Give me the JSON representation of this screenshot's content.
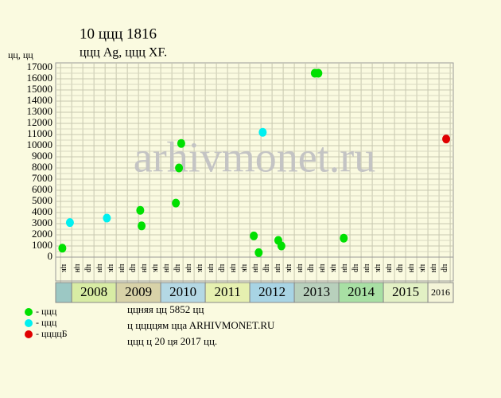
{
  "chart_data": {
    "type": "scatter",
    "title": "10 ццц 1816",
    "subtitle": "ццц Ag, ццц XF.",
    "y_label": "цц, цц",
    "watermark": "arhivmonet.ru",
    "xlim": [
      2007.64,
      2016.57
    ],
    "ylim": [
      0,
      17000
    ],
    "yticks": [
      0,
      1000,
      2000,
      3000,
      4000,
      5000,
      6000,
      7000,
      8000,
      9000,
      10000,
      11000,
      12000,
      13000,
      14000,
      15000,
      16000,
      17000
    ],
    "grid": true,
    "year_bands": [
      null,
      "2008",
      "2009",
      "2010",
      "2011",
      "2012",
      "2013",
      "2014",
      "2015",
      "2016"
    ],
    "band_colors": [
      "#9cc8c4",
      "#d8eca4",
      "#d8d2a8",
      "#b4d8e4",
      "#e6f0b0",
      "#a8d4e4",
      "#b8d0bc",
      "#a8e0a4",
      "#e2f0c4",
      "#f4f4d8"
    ],
    "quarter_labels": [
      "цк",
      "цн",
      "цр",
      "цн",
      "цк",
      "цн",
      "цр",
      "цн",
      "цк",
      "цн",
      "цр",
      "цн",
      "цк",
      "цн",
      "цр",
      "цн",
      "цк",
      "цн",
      "цр",
      "цн",
      "цк",
      "цн",
      "цр",
      "цн",
      "цк",
      "цн",
      "цр",
      "цн",
      "цк",
      "цн",
      "цр",
      "цн",
      "цк",
      "цн",
      "цр"
    ],
    "series": [
      {
        "name": "- ццц",
        "color": "#00e000",
        "x": [
          2007.79,
          2009.54,
          2009.57,
          2010.34,
          2010.41,
          2010.46,
          2012.09,
          2012.2,
          2012.64,
          2012.71,
          2013.46,
          2013.54,
          2014.11
        ],
        "values": [
          800,
          4200,
          2800,
          4850,
          8000,
          10200,
          1900,
          400,
          1500,
          1000,
          16500,
          16500,
          1700
        ]
      },
      {
        "name": "- ццц",
        "color": "#00f0f0",
        "x": [
          2007.96,
          2008.79,
          2012.29
        ],
        "values": [
          3100,
          3500,
          11200
        ]
      },
      {
        "name": "- ццццБ",
        "color": "#e00000",
        "x": [
          2016.41
        ],
        "values": [
          10600
        ]
      }
    ],
    "footer": [
      "ццняя цц 5852 цц",
      "ц ццццям ццa ARHIVMONET.RU",
      "ццц ц 20 ця 2017 цц."
    ]
  }
}
